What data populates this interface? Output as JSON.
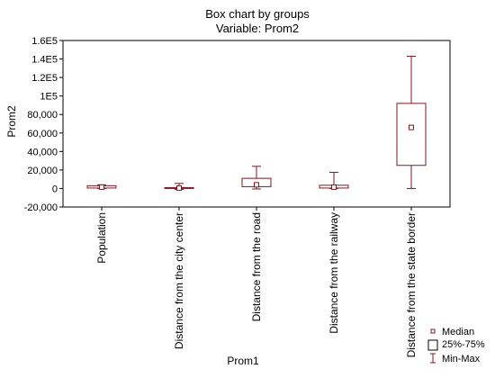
{
  "chart_data": {
    "type": "box",
    "title": "Box chart by groups",
    "subtitle": "Variable: Prom2",
    "xlabel": "Prom1",
    "ylabel": "Prom2",
    "ylim": [
      -20000,
      160000
    ],
    "yticks": [
      -20000,
      0,
      20000,
      40000,
      60000,
      80000,
      100000,
      120000,
      140000,
      160000
    ],
    "ytick_labels": [
      "-20,000",
      "0",
      "20,000",
      "40,000",
      "60,000",
      "80,000",
      "1E5",
      "1.2E5",
      "1.4E5",
      "1.6E5"
    ],
    "categories": [
      "Population",
      "Distance from the city center",
      "Distance from the road",
      "Distance from the railway",
      "Distance from the state border"
    ],
    "boxes": [
      {
        "min": 0,
        "q1": 500,
        "median": 1500,
        "q3": 3000,
        "max": 4000
      },
      {
        "min": -1000,
        "q1": 200,
        "median": 500,
        "q3": 1000,
        "max": 5500
      },
      {
        "min": -500,
        "q1": 2000,
        "median": 4000,
        "q3": 11000,
        "max": 24000
      },
      {
        "min": 0,
        "q1": 500,
        "median": 1500,
        "q3": 3500,
        "max": 17500
      },
      {
        "min": 0,
        "q1": 25000,
        "median": 66000,
        "q3": 92000,
        "max": 143000
      }
    ],
    "legend": {
      "position": "bottom-right",
      "entries": [
        "Median",
        "25%-75%",
        "Min-Max"
      ]
    },
    "colors": {
      "box": "#7a1a22",
      "axis": "#000000"
    },
    "grid": false
  }
}
